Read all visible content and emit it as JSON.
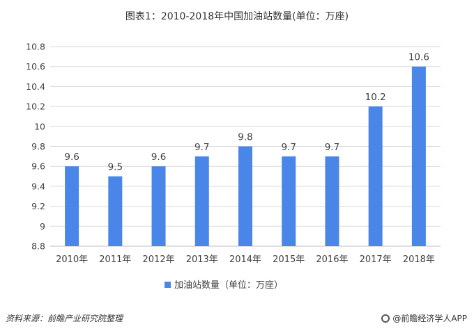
{
  "chart_data": {
    "type": "bar",
    "title": "图表1：2010-2018年中国加油站数量(单位：万座)",
    "categories": [
      "2010年",
      "2011年",
      "2012年",
      "2013年",
      "2014年",
      "2015年",
      "2016年",
      "2017年",
      "2018年"
    ],
    "series": [
      {
        "name": "加油站数量（单位：万座）",
        "values": [
          9.6,
          9.5,
          9.6,
          9.7,
          9.8,
          9.7,
          9.7,
          10.2,
          10.6
        ]
      }
    ],
    "yticks": [
      "8.8",
      "9",
      "9.2",
      "9.4",
      "9.6",
      "9.8",
      "10",
      "10.2",
      "10.4",
      "10.6",
      "10.8"
    ],
    "ylim": [
      8.8,
      10.8
    ],
    "grid": true,
    "legend": "bottom",
    "bar_color": "#4A86E8"
  },
  "footer": {
    "source": "资料来源：前瞻产业研究院整理",
    "brand": "@前瞻经济学人APP"
  }
}
